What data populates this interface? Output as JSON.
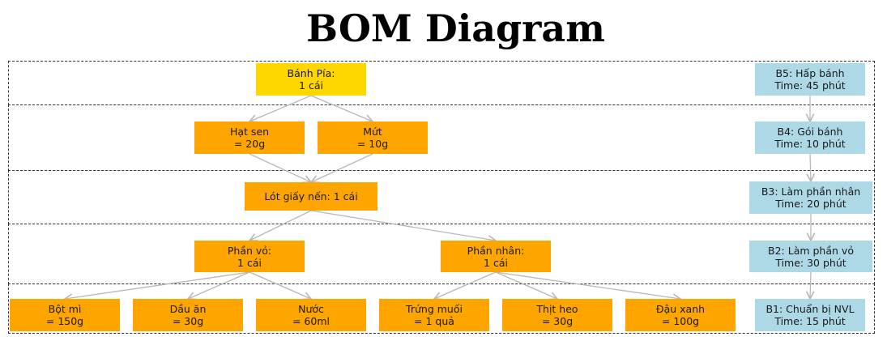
{
  "title": "BOM Diagram",
  "colors": {
    "product": "#FFD700",
    "component": "#FFA500",
    "step": "#ADD8E6",
    "edge": "#b8b8b8",
    "lane_border": "#333333"
  },
  "nodes": {
    "banh_pia": [
      "Bánh Pía:",
      "1 cái"
    ],
    "hat_sen": [
      "Hạt sen",
      "= 20g"
    ],
    "mut": [
      "Mứt",
      "= 10g"
    ],
    "lot_giay": [
      "Lót giấy nến: 1 cái"
    ],
    "phan_vo": [
      "Phần vỏ:",
      "1 cái"
    ],
    "phan_nhan": [
      "Phần nhân:",
      "1 cái"
    ],
    "bot_mi": [
      "Bột mì",
      "= 150g"
    ],
    "dau_an": [
      "Dầu ăn",
      "= 30g"
    ],
    "nuoc": [
      "Nước",
      "= 60ml"
    ],
    "trung_muoi": [
      "Trứng muối",
      "= 1 quả"
    ],
    "thit_heo": [
      "Thịt heo",
      "= 30g"
    ],
    "dau_xanh": [
      "Đậu xanh",
      "= 100g"
    ]
  },
  "steps": {
    "b5": [
      "B5: Hấp bánh",
      "Time: 45 phút"
    ],
    "b4": [
      "B4: Gói bánh",
      "Time: 10 phút"
    ],
    "b3": [
      "B3: Làm phần nhân",
      "Time: 20 phút"
    ],
    "b2": [
      "B2: Làm phần vỏ",
      "Time: 30 phút"
    ],
    "b1": [
      "B1: Chuẩn bị NVL",
      "Time: 15 phút"
    ]
  },
  "edges": [
    [
      "banh_pia",
      "hat_sen"
    ],
    [
      "banh_pia",
      "mut"
    ],
    [
      "hat_sen",
      "lot_giay"
    ],
    [
      "mut",
      "lot_giay"
    ],
    [
      "lot_giay",
      "phan_vo"
    ],
    [
      "lot_giay",
      "phan_nhan"
    ],
    [
      "phan_vo",
      "bot_mi"
    ],
    [
      "phan_vo",
      "dau_an"
    ],
    [
      "phan_vo",
      "nuoc"
    ],
    [
      "phan_nhan",
      "trung_muoi"
    ],
    [
      "phan_nhan",
      "thit_heo"
    ],
    [
      "phan_nhan",
      "dau_xanh"
    ],
    [
      "b5",
      "b4"
    ],
    [
      "b4",
      "b3"
    ],
    [
      "b3",
      "b2"
    ],
    [
      "b2",
      "b1"
    ]
  ]
}
